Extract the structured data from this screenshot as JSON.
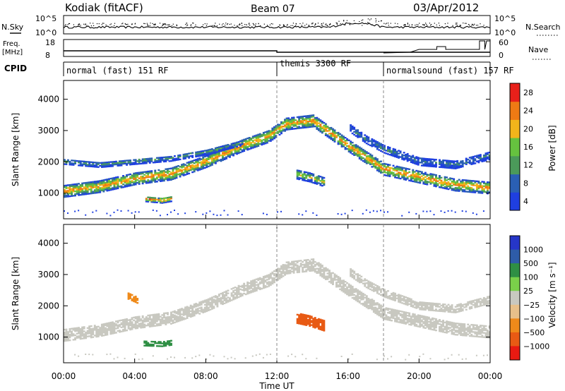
{
  "header": {
    "radar": "Kodiak (fitACF)",
    "beam": "Beam 07",
    "date": "03/Apr/2012"
  },
  "aux_panels": {
    "nsky_label": "N.Sky",
    "nsearch_label": "N.Search",
    "freq_label_1": "Freq.",
    "freq_label_2": "[MHz]",
    "nave_label": "Nave",
    "cpid_label": "CPID",
    "noise_ticks_left": [
      "10^5",
      "10^0"
    ],
    "noise_ticks_right": [
      "10^5",
      "10^0"
    ],
    "freq_ticks": [
      "18",
      "8"
    ],
    "nave_ticks": [
      "60",
      "0"
    ]
  },
  "cpid_segments": [
    {
      "label": "normal (fast) 151 RF",
      "start_hour": 0,
      "end_hour": 12
    },
    {
      "label": "themis 3300 RF",
      "start_hour": 12,
      "end_hour": 18
    },
    {
      "label": "normalsound (fast) 157 RF",
      "start_hour": 18,
      "end_hour": 24
    }
  ],
  "chart_data": [
    {
      "type": "heatmap",
      "panel": "power",
      "ylabel": "Slant Range [km]",
      "xlabel": "Time UT",
      "xlim_hours": [
        0,
        24
      ],
      "ylim": [
        180,
        4600
      ],
      "yticks": [
        1000,
        2000,
        3000,
        4000
      ],
      "xticks": [
        "00:00",
        "04:00",
        "08:00",
        "12:00",
        "16:00",
        "20:00",
        "00:00"
      ],
      "colorbar": {
        "label": "Power [dB]",
        "ticks": [
          "4",
          "8",
          "12",
          "16",
          "20",
          "24",
          "28"
        ],
        "colors": [
          "#1f3fe0",
          "#2a5fb4",
          "#4b9a5a",
          "#66c23f",
          "#f2b51b",
          "#ef7a14",
          "#e8201a"
        ]
      },
      "bands": [
        {
          "name": "main-trace",
          "points": [
            [
              0,
              1050
            ],
            [
              2,
              1200
            ],
            [
              4,
              1450
            ],
            [
              6,
              1600
            ],
            [
              8,
              2000
            ],
            [
              10,
              2500
            ],
            [
              11.5,
              2800
            ],
            [
              12.5,
              3200
            ],
            [
              14,
              3300
            ],
            [
              16,
              2500
            ],
            [
              18,
              1750
            ],
            [
              20,
              1500
            ],
            [
              22,
              1250
            ],
            [
              24,
              1150
            ]
          ],
          "width": 380,
          "core": 24
        },
        {
          "name": "upper-trace",
          "points": [
            [
              0,
              2000
            ],
            [
              2,
              1900
            ],
            [
              4,
              2000
            ],
            [
              6,
              2100
            ],
            [
              8,
              2300
            ],
            [
              10,
              2600
            ]
          ],
          "width": 180,
          "core": 12
        },
        {
          "name": "late-trace",
          "points": [
            [
              16,
              3100
            ],
            [
              17,
              2700
            ],
            [
              18,
              2400
            ],
            [
              20,
              2000
            ],
            [
              22,
              1900
            ],
            [
              24,
              2200
            ]
          ],
          "width": 260,
          "core": 10
        },
        {
          "name": "ionospheric-patch",
          "points": [
            [
              13,
              1600
            ],
            [
              13.8,
              1500
            ],
            [
              14.6,
              1350
            ]
          ],
          "width": 300,
          "core": 18
        },
        {
          "name": "near-range-patch",
          "points": [
            [
              4.5,
              800
            ],
            [
              5.5,
              750
            ],
            [
              6,
              800
            ]
          ],
          "width": 160,
          "core": 26
        }
      ]
    },
    {
      "type": "heatmap",
      "panel": "velocity",
      "ylabel": "Slant Range [km]",
      "xlabel": "Time UT",
      "xlim_hours": [
        0,
        24
      ],
      "ylim": [
        180,
        4600
      ],
      "yticks": [
        1000,
        2000,
        3000,
        4000
      ],
      "xticks": [
        "00:00",
        "04:00",
        "08:00",
        "12:00",
        "16:00",
        "20:00",
        "00:00"
      ],
      "colorbar": {
        "label": "Velocity [m s⁻¹]",
        "ticks": [
          "1000",
          "500",
          "100",
          "25",
          "−25",
          "−100",
          "−500",
          "−1000"
        ],
        "colors": [
          "#2636c8",
          "#2e5ca8",
          "#2f8f44",
          "#7ad04a",
          "#c8c8c0",
          "#e8c08a",
          "#ef8a1a",
          "#e85a14",
          "#e81a12"
        ]
      },
      "bands": [
        {
          "name": "ground-scatter",
          "points": [
            [
              0,
              1050
            ],
            [
              2,
              1200
            ],
            [
              4,
              1450
            ],
            [
              6,
              1600
            ],
            [
              8,
              2000
            ],
            [
              10,
              2500
            ],
            [
              11.5,
              2800
            ],
            [
              12.5,
              3200
            ],
            [
              14,
              3300
            ],
            [
              16,
              2500
            ],
            [
              18,
              1750
            ],
            [
              20,
              1500
            ],
            [
              22,
              1250
            ],
            [
              24,
              1150
            ]
          ],
          "width": 380,
          "velocity": 0
        },
        {
          "name": "upper-gs",
          "points": [
            [
              16,
              3100
            ],
            [
              17,
              2700
            ],
            [
              18,
              2400
            ],
            [
              20,
              2000
            ],
            [
              22,
              1900
            ],
            [
              24,
              2200
            ]
          ],
          "width": 260,
          "velocity": 0
        },
        {
          "name": "negative-flow",
          "points": [
            [
              13,
              1600
            ],
            [
              13.8,
              1500
            ],
            [
              14.6,
              1350
            ]
          ],
          "width": 320,
          "velocity": -400
        },
        {
          "name": "near-range-positive",
          "points": [
            [
              4.5,
              800
            ],
            [
              5.5,
              780
            ],
            [
              6,
              820
            ]
          ],
          "width": 180,
          "velocity": 150
        },
        {
          "name": "early-positive",
          "points": [
            [
              3.6,
              2300
            ],
            [
              4.2,
              2150
            ]
          ],
          "width": 200,
          "velocity": -200
        }
      ]
    }
  ]
}
